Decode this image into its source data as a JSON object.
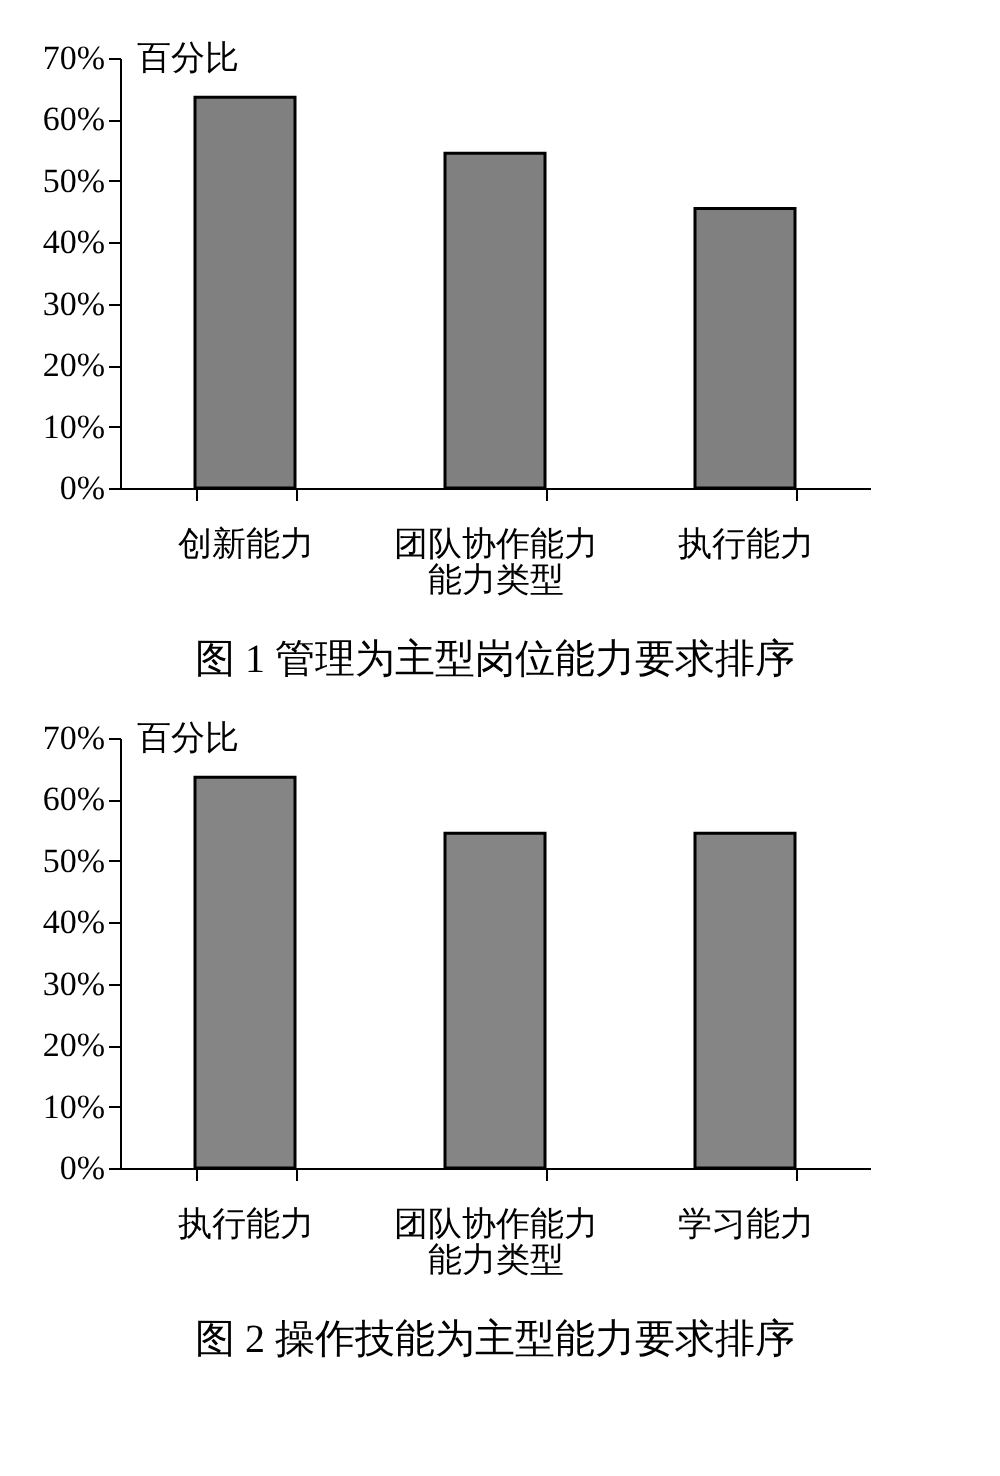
{
  "chart_data": [
    {
      "type": "bar",
      "title": "图 1 管理为主型岗位能力要求排序",
      "ylabel": "百分比",
      "xlabel": "能力类型",
      "categories": [
        "创新能力",
        "团队协作能力",
        "执行能力"
      ],
      "values": [
        63.6,
        54.5,
        45.5
      ],
      "color": "#808080",
      "ylim": [
        0,
        70
      ],
      "yticks": [
        {
          "value": 0,
          "label": "0%"
        },
        {
          "value": 10,
          "label": "10%"
        },
        {
          "value": 20,
          "label": "20%"
        },
        {
          "value": 30,
          "label": "30%"
        },
        {
          "value": 40,
          "label": "40%"
        },
        {
          "value": 50,
          "label": "50%"
        },
        {
          "value": 60,
          "label": "60%"
        },
        {
          "value": 70,
          "label": "70%"
        }
      ],
      "grid": false
    },
    {
      "type": "bar",
      "title": "图 2 操作技能为主型能力要求排序",
      "ylabel": "百分比",
      "xlabel": "能力类型",
      "categories": [
        "执行能力",
        "团队协作能力",
        "学习能力"
      ],
      "values": [
        63.6,
        54.5,
        54.5
      ],
      "color": "#858585",
      "ylim": [
        0,
        70
      ],
      "yticks": [
        {
          "value": 0,
          "label": "0%"
        },
        {
          "value": 10,
          "label": "10%"
        },
        {
          "value": 20,
          "label": "20%"
        },
        {
          "value": 30,
          "label": "30%"
        },
        {
          "value": 40,
          "label": "40%"
        },
        {
          "value": 50,
          "label": "50%"
        },
        {
          "value": 60,
          "label": "60%"
        },
        {
          "value": 70,
          "label": "70%"
        }
      ],
      "grid": false
    }
  ]
}
